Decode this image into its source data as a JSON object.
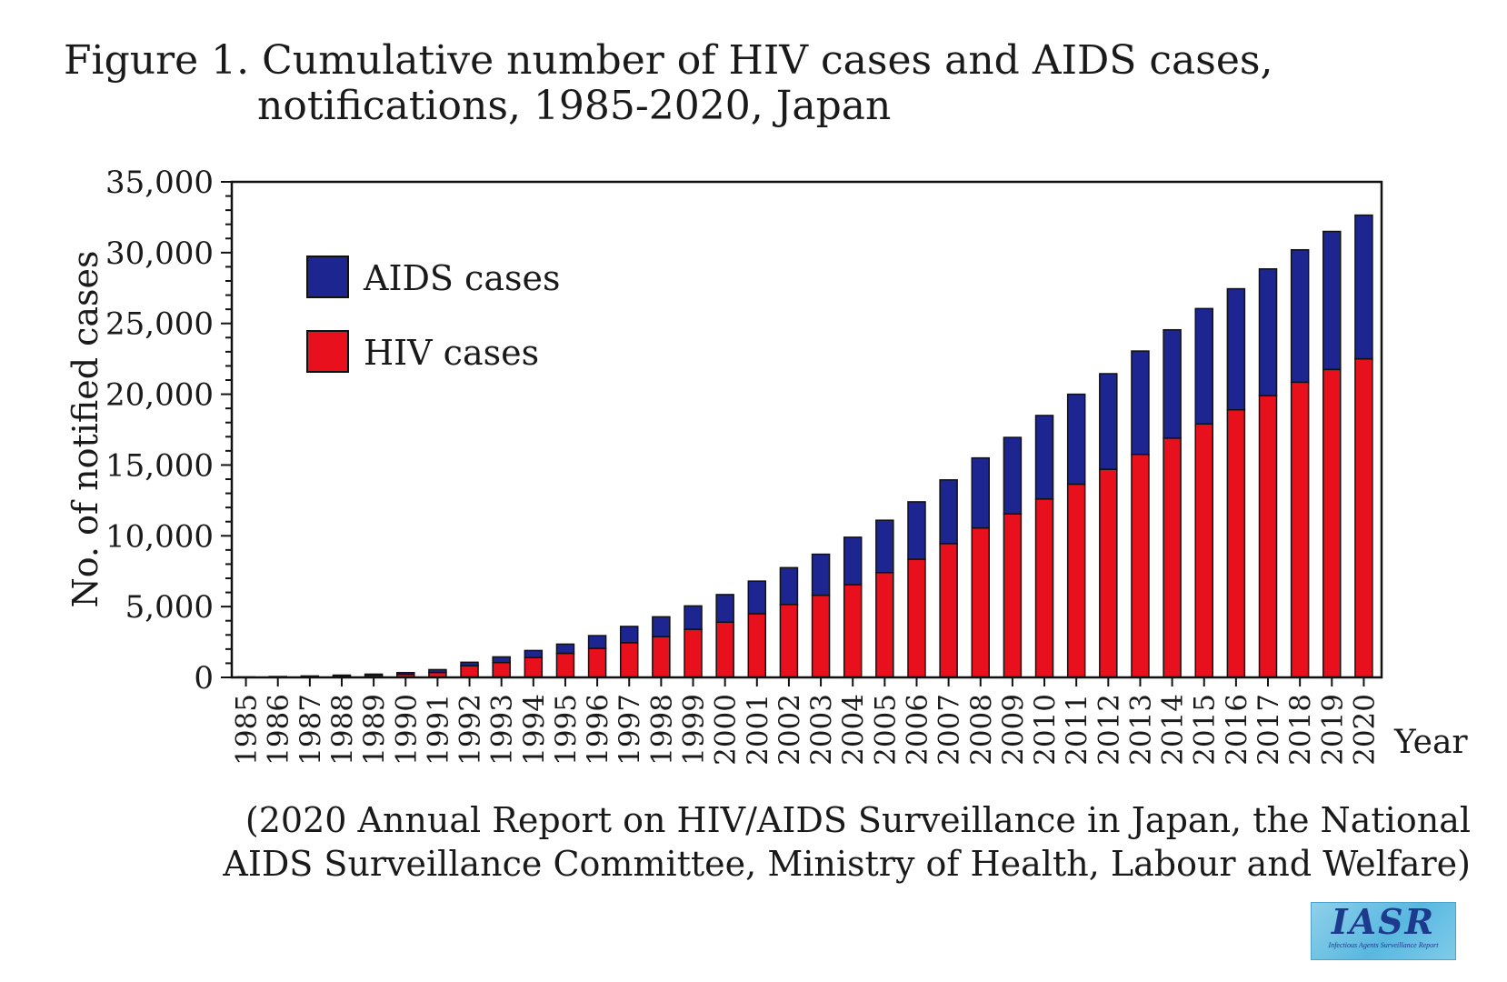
{
  "title": {
    "line1": "Figure 1. Cumulative number of HIV cases and AIDS cases,",
    "line2": "notifications, 1985-2020, Japan"
  },
  "source": {
    "line1": "(2020 Annual Report on HIV/AIDS Surveillance in Japan, the National",
    "line2": "AIDS Surveillance Committee, Ministry of Health, Labour and Welfare)"
  },
  "logo": {
    "text": "IASR",
    "subtitle": "Infectious Agents Surveillance Report"
  },
  "chart_data": {
    "type": "bar",
    "stacked": true,
    "title": "Figure 1. Cumulative number of HIV cases and AIDS cases, notifications, 1985-2020, Japan",
    "xlabel": "Year",
    "ylabel": "No. of notified cases",
    "ylim": [
      0,
      35000
    ],
    "yticks": [
      0,
      5000,
      10000,
      15000,
      20000,
      25000,
      30000,
      35000
    ],
    "ytick_labels": [
      "0",
      "5,000",
      "10,000",
      "15,000",
      "20,000",
      "25,000",
      "30,000",
      "35,000"
    ],
    "legend_position": "top-left",
    "categories": [
      "1985",
      "1986",
      "1987",
      "1988",
      "1989",
      "1990",
      "1991",
      "1992",
      "1993",
      "1994",
      "1995",
      "1996",
      "1997",
      "1998",
      "1999",
      "2000",
      "2001",
      "2002",
      "2003",
      "2004",
      "2005",
      "2006",
      "2007",
      "2008",
      "2009",
      "2010",
      "2011",
      "2012",
      "2013",
      "2014",
      "2015",
      "2016",
      "2017",
      "2018",
      "2019",
      "2020"
    ],
    "series": [
      {
        "name": "HIV cases",
        "color": "#e8101c",
        "values": [
          20,
          40,
          60,
          100,
          150,
          220,
          350,
          820,
          1050,
          1400,
          1700,
          2050,
          2450,
          2880,
          3400,
          3900,
          4500,
          5150,
          5800,
          6550,
          7400,
          8350,
          9450,
          10550,
          11550,
          12600,
          13650,
          14700,
          15750,
          16900,
          17900,
          18900,
          19900,
          20850,
          21750,
          22500
        ]
      },
      {
        "name": "AIDS cases",
        "color": "#1c2590",
        "values": [
          10,
          20,
          40,
          60,
          80,
          120,
          200,
          250,
          400,
          500,
          650,
          900,
          1150,
          1400,
          1650,
          1950,
          2300,
          2600,
          2900,
          3350,
          3700,
          4050,
          4500,
          4950,
          5400,
          5900,
          6350,
          6750,
          7300,
          7650,
          8150,
          8550,
          8950,
          9350,
          9750,
          10150
        ]
      }
    ]
  }
}
